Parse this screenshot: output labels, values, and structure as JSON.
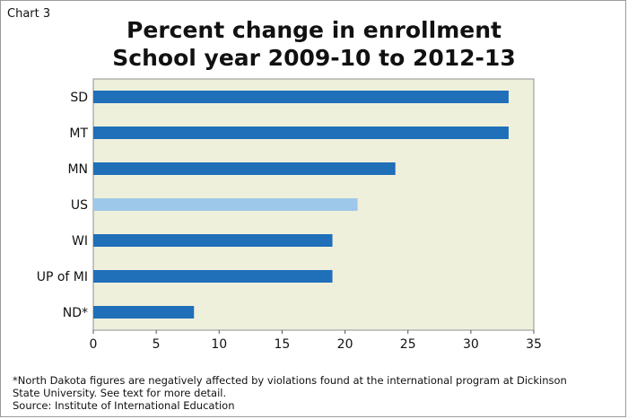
{
  "chart_label": "Chart 3",
  "colors": {
    "plot_bg": "#eef0dc",
    "bar": "#1f6fb9",
    "bar_highlight": "#9dc8ea"
  },
  "chart_data": {
    "type": "bar",
    "orientation": "horizontal",
    "title_lines": [
      "Percent change in enrollment",
      "School year 2009-10 to 2012-13"
    ],
    "categories": [
      "SD",
      "MT",
      "MN",
      "US",
      "WI",
      "UP of MI",
      "ND*"
    ],
    "values": [
      33,
      33,
      24,
      21,
      19,
      19,
      8
    ],
    "highlight_category": "US",
    "xlim": [
      0,
      35
    ],
    "xticks": [
      0,
      5,
      10,
      15,
      20,
      25,
      30,
      35
    ],
    "grid": false,
    "legend": "none"
  },
  "footnotes": [
    "*North Dakota figures are negatively affected by violations found at the international program at Dickinson",
    "State University. See text for more detail.",
    "Source: Institute of International Education"
  ]
}
